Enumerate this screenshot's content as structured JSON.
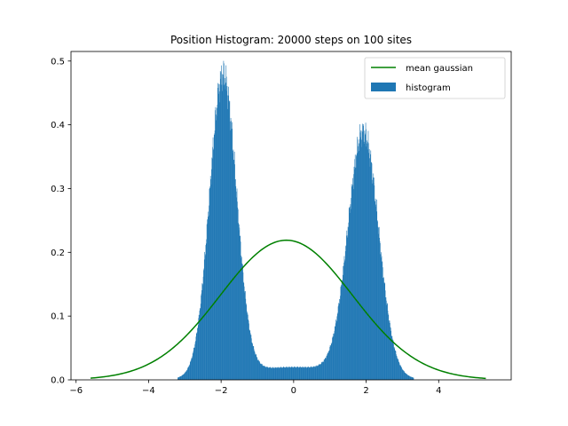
{
  "chart_data": {
    "type": "bar",
    "title": "Position Histogram: 20000 steps on 100 sites",
    "xlabel": "",
    "ylabel": "",
    "xlim": [
      -6.14,
      6.0
    ],
    "ylim": [
      0.0,
      0.515
    ],
    "x_ticks": [
      -6,
      -4,
      -2,
      0,
      2,
      4
    ],
    "x_tick_labels": [
      "−6",
      "−4",
      "−2",
      "0",
      "2",
      "4"
    ],
    "y_ticks": [
      0.0,
      0.1,
      0.2,
      0.3,
      0.4,
      0.5
    ],
    "y_tick_labels": [
      "0.0",
      "0.1",
      "0.2",
      "0.3",
      "0.4",
      "0.5"
    ],
    "grid": false,
    "legend_position": "top-right",
    "series": [
      {
        "name": "mean gaussian",
        "kind": "line",
        "color": "#008000",
        "distribution": "normal",
        "mean": -0.2,
        "std": 1.82,
        "x_range": [
          -5.6,
          5.3
        ],
        "peak": 0.219
      },
      {
        "name": "histogram",
        "kind": "histogram",
        "color": "#1f77b4",
        "x_range": [
          -3.2,
          3.3
        ],
        "bin_width": 0.01,
        "shape": "bimodal",
        "left_peak_x": -1.95,
        "left_peak_y": 0.47,
        "right_peak_x": 1.92,
        "right_peak_y": 0.38,
        "center_min_y": 0.02
      }
    ]
  }
}
